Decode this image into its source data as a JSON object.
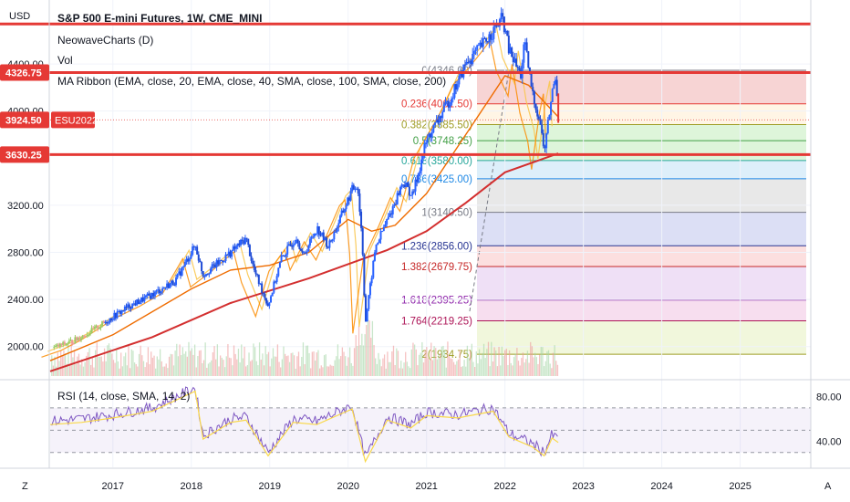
{
  "header": {
    "currency": "USD",
    "title": "S&P 500 E-mini Futures, 1W, CME_MINI",
    "indicator_1": "NeowaveCharts (D)",
    "indicator_2": "Vol",
    "indicator_3": "MA Ribbon (EMA, close, 20, EMA, close, 40, SMA, close, 100, SMA, close, 200)"
  },
  "price_axis": {
    "ticks": [
      "4400.00",
      "4000.00",
      "3200.00",
      "2800.00",
      "2400.00",
      "2000.00"
    ],
    "tick_values": [
      4400,
      4000,
      3200,
      2800,
      2400,
      2000
    ],
    "badges": [
      {
        "label": "4326.75",
        "value": 4326.75,
        "color": "#e53935"
      },
      {
        "label": "3924.50",
        "value": 3924.5,
        "color": "#e53935"
      },
      {
        "label": "3630.25",
        "value": 3630.25,
        "color": "#e53935"
      }
    ],
    "symbol_badge": "ESU2022"
  },
  "time_axis": {
    "labels": [
      "2017",
      "2018",
      "2019",
      "2020",
      "2021",
      "2022",
      "2023",
      "2024",
      "2025"
    ]
  },
  "rsi": {
    "title": "RSI (14, close, SMA, 14, 2)",
    "ticks": [
      "80.00",
      "40.00"
    ],
    "tick_values": [
      80,
      40
    ]
  },
  "corner_buttons": {
    "left": "Z",
    "right": "A"
  },
  "chart_data": {
    "type": "candlestick",
    "title": "S&P 500 E-mini Futures, 1W, CME_MINI",
    "ylim": [
      1750,
      4850
    ],
    "xlim": [
      2016.2,
      2025.9
    ],
    "horizontal_levels": [
      4740,
      4326.75,
      3630.25
    ],
    "fibonacci": [
      {
        "label": "0(4346.00)",
        "ratio": "0",
        "value": 4346.0,
        "color": "#787b86",
        "fill": "#f6cccc"
      },
      {
        "label": "0.236(4061.50)",
        "ratio": "0.236",
        "value": 4061.5,
        "color": "#e53935",
        "fill": "#fff3e0"
      },
      {
        "label": "0.382(3885.50)",
        "ratio": "0.382",
        "value": 3885.5,
        "color": "#9e9d24",
        "fill": "#d8f3d3"
      },
      {
        "label": "0.5(3748.25)",
        "ratio": "0.5",
        "value": 3748.25,
        "color": "#43a047",
        "fill": "#d8f3d3"
      },
      {
        "label": "0.618(3580.00)",
        "ratio": "0.618",
        "value": 3580.0,
        "color": "#26a69a",
        "fill": "#d7ecf9"
      },
      {
        "label": "0.786(3425.00)",
        "ratio": "0.786",
        "value": 3425.0,
        "color": "#1e88e5",
        "fill": "#e4e4e4"
      },
      {
        "label": "1(3140.50)",
        "ratio": "1",
        "value": 3140.5,
        "color": "#787b86",
        "fill": "#d6d9f3"
      },
      {
        "label": "1.236(2856.00)",
        "ratio": "1.236",
        "value": 2856.0,
        "color": "#283593",
        "fill": "#fbd9d9"
      },
      {
        "label": "1.382(2679.75)",
        "ratio": "1.382",
        "value": 2679.75,
        "color": "#c62828",
        "fill": "#ecdaf5"
      },
      {
        "label": "1.618(2395.25)",
        "ratio": "1.618",
        "value": 2395.25,
        "color": "#8e24aa",
        "fill": "#f6d8ec"
      },
      {
        "label": "1.764(2219.25)",
        "ratio": "1.764",
        "value": 2219.25,
        "color": "#ad1457",
        "fill": "#eef6d6"
      },
      {
        "label": "2(1934.75)",
        "ratio": "2",
        "value": 1934.75,
        "color": "#9e9d24",
        "fill": "#eef6d6"
      }
    ],
    "price_path": [
      [
        2016.25,
        1990
      ],
      [
        2016.5,
        2050
      ],
      [
        2016.75,
        2140
      ],
      [
        2016.95,
        2230
      ],
      [
        2017.2,
        2340
      ],
      [
        2017.5,
        2440
      ],
      [
        2017.8,
        2560
      ],
      [
        2018.05,
        2860
      ],
      [
        2018.15,
        2610
      ],
      [
        2018.4,
        2740
      ],
      [
        2018.7,
        2920
      ],
      [
        2018.8,
        2650
      ],
      [
        2018.98,
        2350
      ],
      [
        2019.15,
        2750
      ],
      [
        2019.35,
        2940
      ],
      [
        2019.42,
        2760
      ],
      [
        2019.6,
        3010
      ],
      [
        2019.75,
        2850
      ],
      [
        2020.05,
        3330
      ],
      [
        2020.12,
        3380
      ],
      [
        2020.18,
        2900
      ],
      [
        2020.22,
        2200
      ],
      [
        2020.35,
        2850
      ],
      [
        2020.55,
        3150
      ],
      [
        2020.7,
        3400
      ],
      [
        2020.82,
        3280
      ],
      [
        2021.0,
        3750
      ],
      [
        2021.3,
        4100
      ],
      [
        2021.5,
        4400
      ],
      [
        2021.7,
        4550
      ],
      [
        2021.85,
        4680
      ],
      [
        2021.97,
        4790
      ],
      [
        2022.05,
        4520
      ],
      [
        2022.2,
        4300
      ],
      [
        2022.25,
        4580
      ],
      [
        2022.35,
        4150
      ],
      [
        2022.45,
        3900
      ],
      [
        2022.5,
        3650
      ],
      [
        2022.6,
        4150
      ],
      [
        2022.65,
        4320
      ],
      [
        2022.68,
        3930
      ]
    ],
    "ma_slow_path": [
      [
        2016.2,
        1790
      ],
      [
        2017.5,
        2080
      ],
      [
        2018.5,
        2370
      ],
      [
        2019.5,
        2580
      ],
      [
        2020.5,
        2820
      ],
      [
        2021.0,
        2980
      ],
      [
        2021.5,
        3220
      ],
      [
        2022.0,
        3480
      ],
      [
        2022.68,
        3640
      ]
    ],
    "ma_fast_path": [
      [
        2016.2,
        1880
      ],
      [
        2017.0,
        2100
      ],
      [
        2018.0,
        2490
      ],
      [
        2018.5,
        2650
      ],
      [
        2019.0,
        2690
      ],
      [
        2019.5,
        2800
      ],
      [
        2020.0,
        3080
      ],
      [
        2020.3,
        2980
      ],
      [
        2020.6,
        3030
      ],
      [
        2021.0,
        3300
      ],
      [
        2021.5,
        3800
      ],
      [
        2022.0,
        4300
      ],
      [
        2022.3,
        4220
      ],
      [
        2022.68,
        3950
      ]
    ],
    "rsi_range": [
      20,
      92
    ],
    "rsi_path": [
      [
        2016.2,
        58
      ],
      [
        2016.6,
        60
      ],
      [
        2017.0,
        64
      ],
      [
        2017.5,
        70
      ],
      [
        2018.05,
        88
      ],
      [
        2018.15,
        45
      ],
      [
        2018.5,
        60
      ],
      [
        2018.7,
        62
      ],
      [
        2018.98,
        30
      ],
      [
        2019.3,
        60
      ],
      [
        2019.6,
        58
      ],
      [
        2020.05,
        72
      ],
      [
        2020.22,
        25
      ],
      [
        2020.5,
        62
      ],
      [
        2020.8,
        55
      ],
      [
        2021.0,
        66
      ],
      [
        2021.4,
        64
      ],
      [
        2021.85,
        70
      ],
      [
        2022.05,
        47
      ],
      [
        2022.35,
        38
      ],
      [
        2022.5,
        30
      ],
      [
        2022.6,
        46
      ],
      [
        2022.68,
        42
      ]
    ]
  }
}
